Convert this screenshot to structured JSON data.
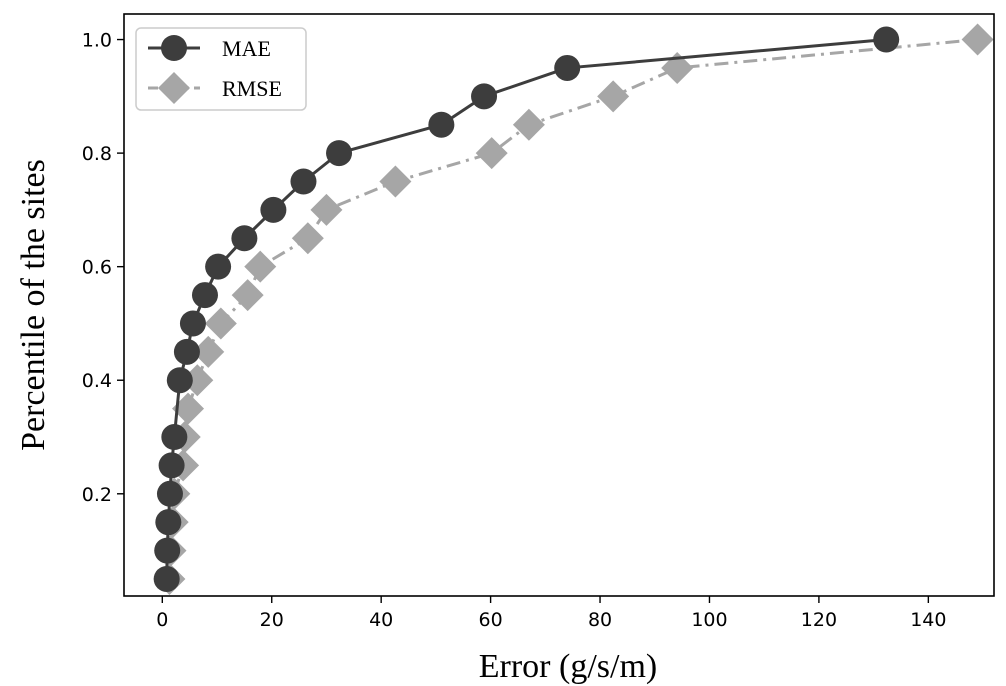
{
  "chart_data": {
    "type": "line",
    "xlabel": "Error (g/s/m)",
    "ylabel": "Percentile of the sites",
    "xlim": [
      -7,
      152
    ],
    "ylim": [
      0.02,
      1.045
    ],
    "xticks": [
      0,
      20,
      40,
      60,
      80,
      100,
      120,
      140
    ],
    "yticks": [
      0.2,
      0.4,
      0.6,
      0.8,
      1.0
    ],
    "xtick_labels": [
      "0",
      "20",
      "40",
      "60",
      "80",
      "100",
      "120",
      "140"
    ],
    "ytick_labels": [
      "0.2",
      "0.4",
      "0.6",
      "0.8",
      "1.0"
    ],
    "legend_position": "top-left",
    "grid": false,
    "series": [
      {
        "name": "MAE",
        "color": "#3d3d3d",
        "marker": "circle",
        "linestyle": "solid",
        "x": [
          0.8,
          0.9,
          1.1,
          1.4,
          1.7,
          2.2,
          3.2,
          4.5,
          5.6,
          7.8,
          10.2,
          15.0,
          20.3,
          25.8,
          32.3,
          51.0,
          58.8,
          74.0,
          132.3
        ],
        "y": [
          0.05,
          0.1,
          0.15,
          0.2,
          0.25,
          0.3,
          0.4,
          0.45,
          0.5,
          0.55,
          0.6,
          0.65,
          0.7,
          0.75,
          0.8,
          0.85,
          0.9,
          0.95,
          1.0
        ]
      },
      {
        "name": "RMSE",
        "color": "#a6a6a6",
        "marker": "diamond",
        "linestyle": "dashdot",
        "x": [
          1.3,
          1.5,
          1.9,
          2.2,
          3.8,
          4.1,
          4.7,
          6.4,
          8.4,
          10.7,
          15.6,
          17.9,
          26.6,
          30.0,
          42.6,
          60.2,
          67.0,
          82.4,
          94.1,
          149.0
        ],
        "y": [
          0.05,
          0.1,
          0.15,
          0.2,
          0.25,
          0.3,
          0.35,
          0.4,
          0.45,
          0.5,
          0.55,
          0.6,
          0.65,
          0.7,
          0.75,
          0.8,
          0.85,
          0.9,
          0.95,
          1.0
        ]
      }
    ]
  }
}
